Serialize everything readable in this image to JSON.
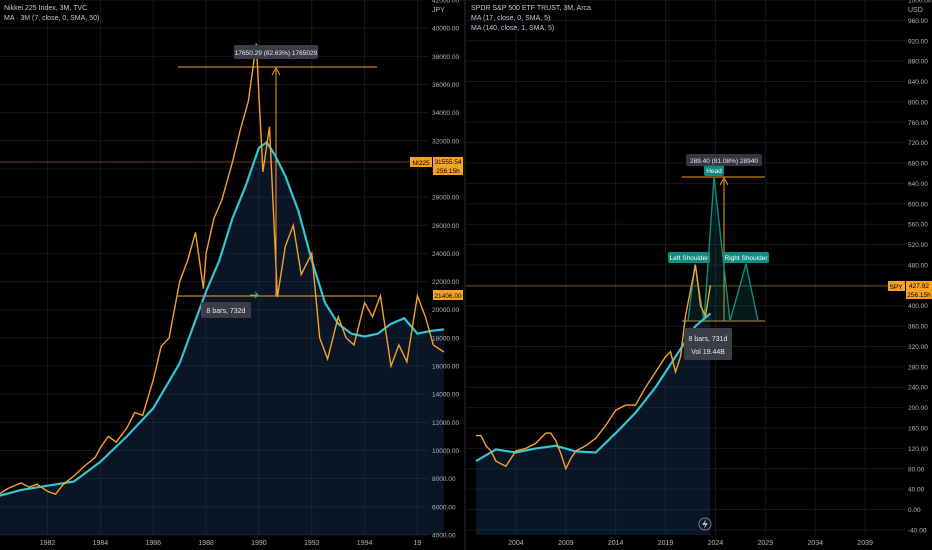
{
  "left_panel": {
    "legend": {
      "symbol_line": "Nikkei 225 Index, 3M, TVC",
      "ma_line": "MA · 3M (7, close, 0, SMA, 50)"
    },
    "currency": "JPY",
    "price_label": {
      "ticker": "NI225",
      "value": "31555.54",
      "sub": "256.15h"
    },
    "level_label": "21406.00",
    "measure_top": "17650.29 (82.63%) 1765029",
    "measure_bottom": "8 bars, 732d",
    "x_tick_labels": [
      "1982",
      "1984",
      "1986",
      "1988",
      "1990",
      "1992",
      "1994",
      "19"
    ]
  },
  "right_panel": {
    "legend": {
      "symbol_line": "SPDR S&P 500 ETF TRUST, 3M, Arca",
      "ma1_line": "MA (17, close, 0, SMA, 5)",
      "ma2_line": "MA (140, close, 1, SMA, 5)"
    },
    "currency": "USD",
    "price_label": {
      "ticker": "SPY",
      "value": "427.92",
      "sub": "256.15h"
    },
    "measure_top": "289.40 (81.08%) 28940",
    "measure_bottom_1": "8 bars, 731d",
    "measure_bottom_2": "Vol 19.44B",
    "pattern_labels": {
      "left": "Left Shoulder",
      "head": "Head",
      "right": "Right Shoulder"
    },
    "x_tick_labels": [
      "2004",
      "2009",
      "2014",
      "2019",
      "2024",
      "2029",
      "2034",
      "2039"
    ]
  },
  "colors": {
    "price_line": "#f7a128",
    "ma_line": "#33c5d4",
    "pattern_label_bg": "#0f8b82",
    "level_line": "#c8923b"
  },
  "chart_data": [
    {
      "type": "line",
      "series": [
        {
          "x": [
            1980,
            1980.5,
            1981,
            1981.3,
            1981.6,
            1982,
            1982.3,
            1982.6,
            1983,
            1983.4,
            1983.8,
            1984,
            1984.3,
            1984.6,
            1985,
            1985.3,
            1985.6,
            1986,
            1986.3,
            1986.6,
            1987,
            1987.3,
            1987.6,
            1987.9,
            1988,
            1988.3,
            1988.6,
            1989,
            1989.3,
            1989.6,
            1989.9,
            1990.15,
            1990.4,
            1990.7,
            1991,
            1991.3,
            1991.6,
            1992,
            1992.3,
            1992.6,
            1993,
            1993.3,
            1993.6,
            1994,
            1994.3,
            1994.6,
            1995,
            1995.3,
            1995.6,
            1996,
            1996.3,
            1996.6,
            1997
          ],
          "values": [
            6700,
            7300,
            7700,
            7400,
            7600,
            7100,
            6900,
            7600,
            8200,
            8900,
            9500,
            10200,
            11000,
            10600,
            11600,
            12700,
            12500,
            15000,
            17400,
            18000,
            22000,
            23500,
            25500,
            21500,
            24000,
            26500,
            27800,
            30500,
            32800,
            34800,
            38900,
            29800,
            33000,
            20900,
            24500,
            26000,
            22500,
            24000,
            18000,
            16500,
            19500,
            18000,
            17500,
            20500,
            19500,
            21000,
            16000,
            17500,
            16300,
            21000,
            19500,
            17500,
            17000
          ]
        },
        {
          "x": [
            1980,
            1981,
            1982,
            1983,
            1984,
            1985,
            1986,
            1987,
            1988,
            1988.5,
            1989,
            1989.5,
            1990,
            1990.3,
            1990.6,
            1991,
            1991.5,
            1992,
            1992.5,
            1993,
            1993.5,
            1994,
            1994.5,
            1995,
            1995.5,
            1996,
            1996.5,
            1997
          ],
          "values": [
            6700,
            7200,
            7500,
            7800,
            9200,
            11000,
            13000,
            16200,
            21300,
            23500,
            26500,
            28800,
            31500,
            31900,
            31000,
            29500,
            27000,
            23500,
            20500,
            19000,
            18300,
            18100,
            18300,
            19000,
            19400,
            18300,
            18500,
            18600
          ]
        }
      ],
      "ylim": [
        4000,
        42000
      ],
      "xlim": [
        1980.2,
        1996.4
      ]
    },
    {
      "type": "line",
      "series": [
        {
          "x": [
            2000,
            2000.5,
            2001,
            2001.5,
            2002,
            2002.5,
            2003,
            2003.5,
            2004,
            2005,
            2006,
            2007,
            2007.5,
            2008,
            2008.5,
            2009,
            2009.5,
            2010,
            2011,
            2012,
            2013,
            2014,
            2015,
            2016,
            2017,
            2018,
            2019,
            2019.5,
            2020,
            2020.5,
            2021,
            2021.5,
            2022,
            2022.5,
            2023,
            2023.5
          ],
          "values": [
            145,
            145,
            125,
            115,
            95,
            90,
            85,
            100,
            115,
            120,
            130,
            150,
            150,
            135,
            110,
            80,
            100,
            115,
            125,
            140,
            165,
            195,
            205,
            205,
            240,
            270,
            300,
            310,
            270,
            300,
            380,
            430,
            480,
            400,
            380,
            440
          ]
        },
        {
          "x": [
            2000,
            2002,
            2004,
            2006,
            2008,
            2010,
            2012,
            2014,
            2016,
            2018,
            2020,
            2022,
            2023.5
          ],
          "values": [
            95,
            118,
            112,
            120,
            125,
            114,
            112,
            150,
            190,
            240,
            300,
            360,
            385
          ]
        }
      ],
      "ylim": [
        -50,
        1000
      ],
      "xlim": [
        1999,
        2043
      ]
    }
  ]
}
